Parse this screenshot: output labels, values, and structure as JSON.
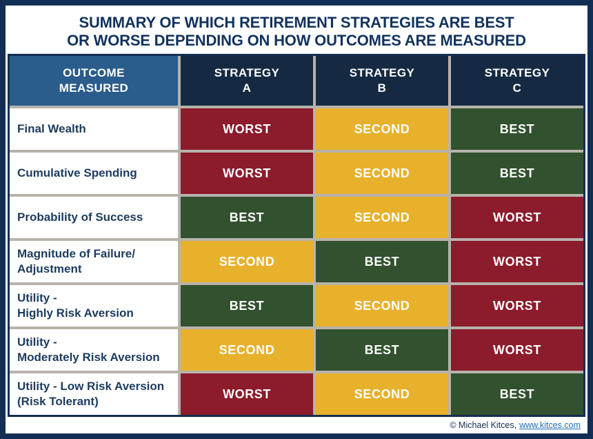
{
  "title": {
    "line1": "SUMMARY OF WHICH RETIREMENT STRATEGIES ARE BEST",
    "line2": "OR WORSE DEPENDING ON HOW OUTCOMES ARE MEASURED"
  },
  "table": {
    "header": {
      "outcome": "OUTCOME\nMEASURED",
      "strategy_a": "STRATEGY\nA",
      "strategy_b": "STRATEGY\nB",
      "strategy_c": "STRATEGY\nC"
    },
    "rows": [
      {
        "label": "Final Wealth",
        "cells": [
          "WORST",
          "SECOND",
          "BEST"
        ]
      },
      {
        "label": "Cumulative Spending",
        "cells": [
          "WORST",
          "SECOND",
          "BEST"
        ]
      },
      {
        "label": "Probability of Success",
        "cells": [
          "BEST",
          "SECOND",
          "WORST"
        ]
      },
      {
        "label": "Magnitude of Failure/\nAdjustment",
        "cells": [
          "SECOND",
          "BEST",
          "WORST"
        ]
      },
      {
        "label": "Utility -\nHighly Risk Aversion",
        "cells": [
          "BEST",
          "SECOND",
          "WORST"
        ]
      },
      {
        "label": "Utility -\nModerately Risk Aversion",
        "cells": [
          "SECOND",
          "BEST",
          "WORST"
        ]
      },
      {
        "label": "Utility - Low Risk Aversion\n(Risk Tolerant)",
        "cells": [
          "WORST",
          "SECOND",
          "BEST"
        ]
      }
    ]
  },
  "footer": {
    "copyright": "© Michael Kitces,",
    "link": "www.kitces.com"
  },
  "colors": {
    "worst": "#8C1B2B",
    "second": "#E8B12C",
    "best": "#32512E",
    "header_outcome_bg": "#2A5C8C",
    "header_strategy_bg": "#152A42",
    "frame_navy": "#132E54",
    "title_text": "#11325D",
    "label_text": "#1C3B5E",
    "separator_gray": "#B7B3AB",
    "link_blue": "#1B6DB7"
  },
  "chart_data": {
    "type": "table",
    "title": "Summary of which retirement strategies are best or worse depending on how outcomes are measured",
    "columns": [
      "Outcome Measured",
      "Strategy A",
      "Strategy B",
      "Strategy C"
    ],
    "rows": [
      [
        "Final Wealth",
        "Worst",
        "Second",
        "Best"
      ],
      [
        "Cumulative Spending",
        "Worst",
        "Second",
        "Best"
      ],
      [
        "Probability of Success",
        "Best",
        "Second",
        "Worst"
      ],
      [
        "Magnitude of Failure/Adjustment",
        "Second",
        "Best",
        "Worst"
      ],
      [
        "Utility - Highly Risk Aversion",
        "Best",
        "Second",
        "Worst"
      ],
      [
        "Utility - Moderately Risk Aversion",
        "Second",
        "Best",
        "Worst"
      ],
      [
        "Utility - Low Risk Aversion (Risk Tolerant)",
        "Worst",
        "Second",
        "Best"
      ]
    ],
    "legend": {
      "Best": "#32512E",
      "Second": "#E8B12C",
      "Worst": "#8C1B2B"
    },
    "legend_position": "none",
    "grid": true
  }
}
